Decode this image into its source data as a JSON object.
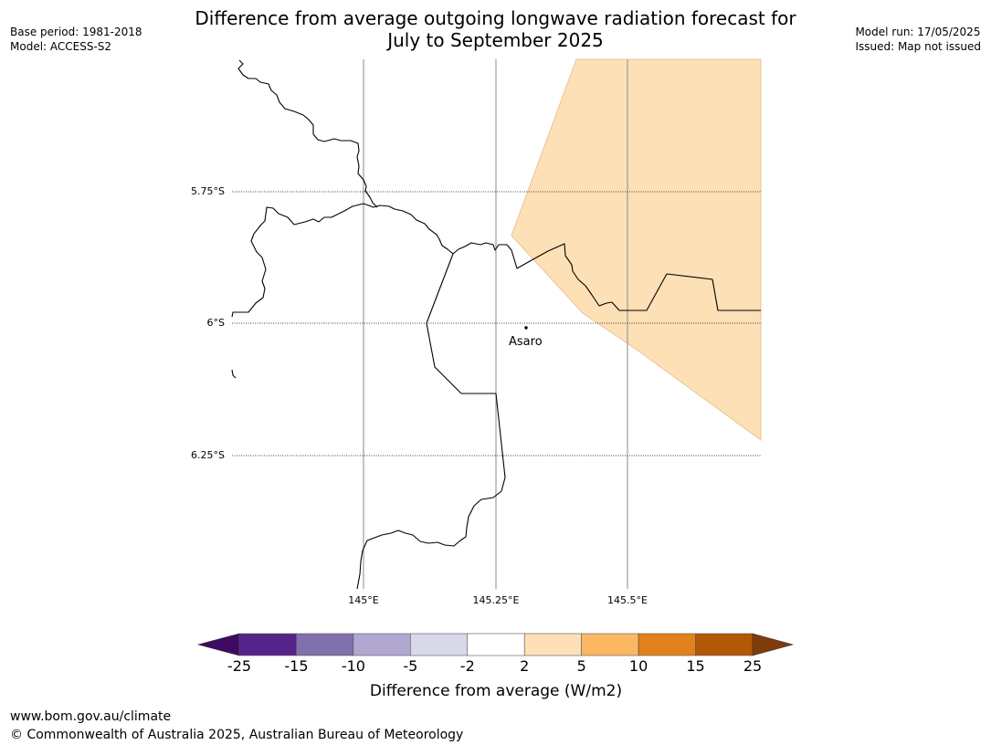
{
  "header": {
    "title_line1": "Difference from average outgoing longwave radiation forecast for",
    "title_line2": "July to September 2025",
    "base_period": "Base period: 1981-2018",
    "model": "Model: ACCESS-S2",
    "model_run": "Model run: 17/05/2025",
    "issued": "Issued: Map not issued"
  },
  "map": {
    "lat_labels": [
      "5.75°S",
      "6°S",
      "6.25°S"
    ],
    "lon_labels": [
      "145°E",
      "145.25°E",
      "145.5°E"
    ],
    "place": {
      "name": "Asaro"
    },
    "anomaly_fill_color": "#fde0b6"
  },
  "colorbar": {
    "ticks": [
      "-25",
      "-15",
      "-10",
      "-5",
      "-2",
      "2",
      "5",
      "10",
      "15",
      "25"
    ],
    "colors": [
      "#3f0a63",
      "#55238a",
      "#8070ae",
      "#b1a8d2",
      "#d8d8ea",
      "#ffffff",
      "#fde0b6",
      "#fbb762",
      "#e1811b",
      "#b35806",
      "#7f3b0a"
    ],
    "label": "Difference from average (W/m2)"
  },
  "footer": {
    "url": "www.bom.gov.au/climate",
    "copyright": "© Commonwealth of Australia 2025, Australian Bureau of Meteorology"
  }
}
